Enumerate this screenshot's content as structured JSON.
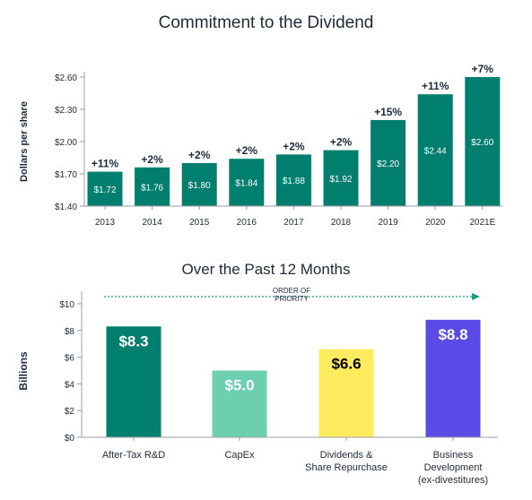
{
  "chart_data": [
    {
      "type": "bar",
      "title": "Commitment to the Dividend",
      "ylabel": "Dollars per share",
      "xlabel": "",
      "categories": [
        "2013",
        "2014",
        "2015",
        "2016",
        "2017",
        "2018",
        "2019",
        "2020",
        "2021E"
      ],
      "values": [
        1.72,
        1.76,
        1.8,
        1.84,
        1.88,
        1.92,
        2.2,
        2.44,
        2.6
      ],
      "value_labels": [
        "$1.72",
        "$1.76",
        "$1.80",
        "$1.84",
        "$1.88",
        "$1.92",
        "$2.20",
        "$2.44",
        "$2.60"
      ],
      "growth_labels": [
        "+11%",
        "+2%",
        "+2%",
        "+2%",
        "+2%",
        "+2%",
        "+15%",
        "+11%",
        "+7%"
      ],
      "yticks": [
        1.4,
        1.7,
        2.0,
        2.3,
        2.6
      ],
      "ytick_labels": [
        "$1.40",
        "$1.70",
        "$2.00",
        "$2.30",
        "$2.60"
      ],
      "ylim": [
        1.4,
        2.6
      ],
      "grid": false,
      "bar_color": "#007E6E"
    },
    {
      "type": "bar",
      "title": "Over the Past 12 Months",
      "ylabel": "Billions",
      "xlabel": "",
      "categories": [
        "After-Tax R&D",
        "CapEx",
        "Dividends & Share Repurchase",
        "Business Development (ex-divestitures)"
      ],
      "category_lines": [
        [
          "After-Tax R&D"
        ],
        [
          "CapEx"
        ],
        [
          "Dividends &",
          "Share Repurchase"
        ],
        [
          "Business",
          "Development",
          "(ex-divestitures)"
        ]
      ],
      "values": [
        8.3,
        5.0,
        6.6,
        8.8
      ],
      "value_labels": [
        "$8.3",
        "$5.0",
        "$6.6",
        "$8.8"
      ],
      "colors": [
        "#007E6E",
        "#6DCFB0",
        "#FFEC5E",
        "#5A4BE6"
      ],
      "label_colors": [
        "#ffffff",
        "#ffffff",
        "#000000",
        "#ffffff"
      ],
      "yticks": [
        0,
        2,
        4,
        6,
        8,
        10
      ],
      "ytick_labels": [
        "$0",
        "$2",
        "$4",
        "$6",
        "$8",
        "$10"
      ],
      "ylim": [
        0,
        10
      ],
      "grid": false,
      "annotation": "ORDER OF PRIORITY",
      "annotation_lines": [
        "ORDER OF",
        "PRIORITY"
      ]
    }
  ]
}
